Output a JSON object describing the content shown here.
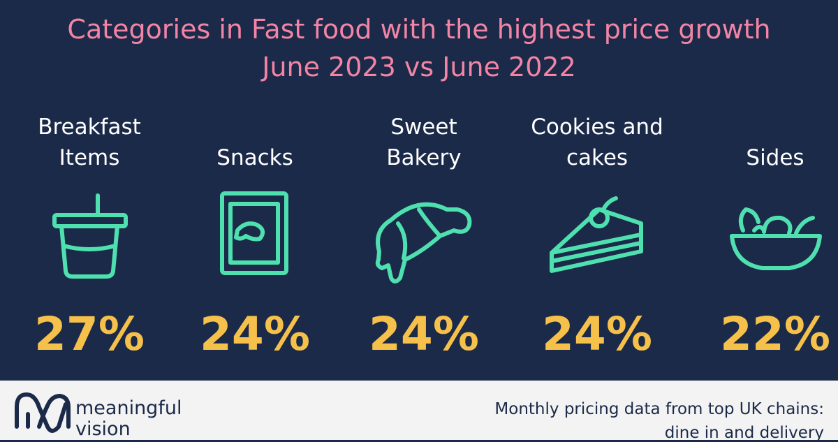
{
  "header": {
    "title": "Categories in Fast food with the highest price growth",
    "subtitle": "June 2023 vs June 2022"
  },
  "items": [
    {
      "label": [
        "Breakfast",
        "Items"
      ],
      "value": "27%"
    },
    {
      "label": [
        "Snacks"
      ],
      "value": "24%"
    },
    {
      "label": [
        "Sweet",
        "Bakery"
      ],
      "value": "24%"
    },
    {
      "label": [
        "Cookies and",
        "cakes"
      ],
      "value": "24%"
    },
    {
      "label": [
        "Sides"
      ],
      "value": "22%"
    }
  ],
  "footer": {
    "brand": [
      "meaningful",
      "vision"
    ],
    "note": [
      "Monthly pricing data from top UK chains:",
      "dine in and delivery"
    ]
  }
}
